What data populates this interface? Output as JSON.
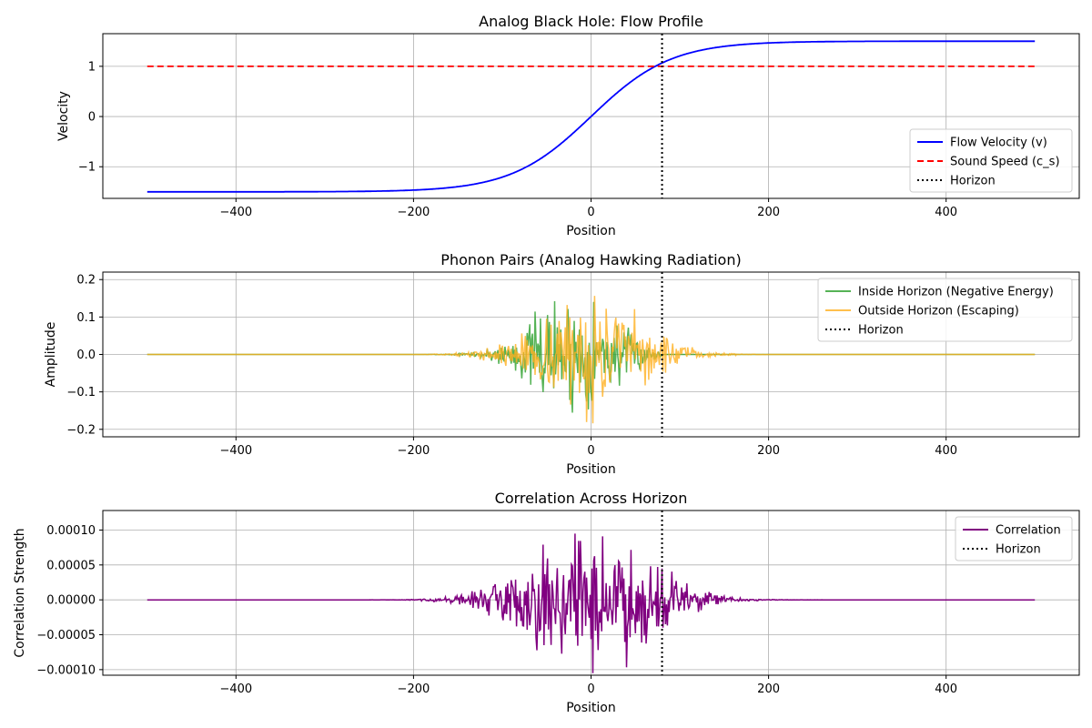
{
  "chart_data": [
    {
      "type": "line",
      "title": "Analog Black Hole: Flow Profile",
      "xlabel": "Position",
      "ylabel": "Velocity",
      "xlim": [
        -550,
        550
      ],
      "ylim": [
        -1.63,
        1.65
      ],
      "xticks": [
        -400,
        -200,
        0,
        200,
        400
      ],
      "xtick_labels": [
        "−400",
        "−200",
        "0",
        "200",
        "400"
      ],
      "yticks": [
        -1,
        0,
        1
      ],
      "ytick_labels": [
        "−1",
        "0",
        "1"
      ],
      "grid": true,
      "legend_position": "lower-right",
      "horizon_x": 80,
      "series": [
        {
          "name": "Flow Velocity (v)",
          "color": "#0000ff",
          "style": "solid",
          "shape": "tanh",
          "amplitude": 1.5,
          "width": 90,
          "x_range": [
            -500,
            500
          ]
        },
        {
          "name": "Sound Speed (c_s)",
          "color": "#ff0000",
          "style": "dashed",
          "constant": 1,
          "x_range": [
            -500,
            500
          ]
        },
        {
          "name": "Horizon",
          "color": "#000000",
          "style": "dotted",
          "vertical_x": 80
        }
      ]
    },
    {
      "type": "line",
      "title": "Phonon Pairs (Analog Hawking Radiation)",
      "xlabel": "Position",
      "ylabel": "Amplitude",
      "xlim": [
        -550,
        550
      ],
      "ylim": [
        -0.22,
        0.22
      ],
      "xticks": [
        -400,
        -200,
        0,
        200,
        400
      ],
      "xtick_labels": [
        "−400",
        "−200",
        "0",
        "200",
        "400"
      ],
      "yticks": [
        -0.2,
        -0.1,
        0.0,
        0.1,
        0.2
      ],
      "ytick_labels": [
        "−0.2",
        "−0.1",
        "0.0",
        "0.1",
        "0.2"
      ],
      "grid": true,
      "legend_position": "upper-right",
      "horizon_x": 80,
      "series": [
        {
          "name": "Inside Horizon (Negative Energy)",
          "color": "#2ca02c",
          "alpha": 0.8,
          "style": "solid",
          "center": -20,
          "sigma": 45,
          "peak": 0.2,
          "range": [
            -220,
            80
          ],
          "seed": 7
        },
        {
          "name": "Outside Horizon (Escaping)",
          "color": "#ffb020",
          "alpha": 0.8,
          "style": "solid",
          "center": 0,
          "sigma": 55,
          "peak": 0.19,
          "range": [
            -200,
            230
          ],
          "seed": 13
        },
        {
          "name": "Horizon",
          "color": "#000000",
          "style": "dotted",
          "vertical_x": 80
        }
      ]
    },
    {
      "type": "line",
      "title": "Correlation Across Horizon",
      "xlabel": "Position",
      "ylabel": "Correlation Strength",
      "xlim": [
        -550,
        550
      ],
      "ylim": [
        -0.000108,
        0.000128
      ],
      "xticks": [
        -400,
        -200,
        0,
        200,
        400
      ],
      "xtick_labels": [
        "−400",
        "−200",
        "0",
        "200",
        "400"
      ],
      "yticks": [
        -0.0001,
        -5e-05,
        0,
        5e-05,
        0.0001
      ],
      "ytick_labels": [
        "−0.00010",
        "−0.00005",
        "0.00000",
        "0.00005",
        "0.00010"
      ],
      "grid": true,
      "legend_position": "upper-right",
      "horizon_x": 80,
      "series": [
        {
          "name": "Correlation",
          "color": "#800080",
          "style": "solid",
          "center": 0,
          "sigma": 65,
          "peak": 0.00012,
          "range": [
            -280,
            300
          ],
          "seed": 29
        },
        {
          "name": "Horizon",
          "color": "#000000",
          "style": "dotted",
          "vertical_x": 80
        }
      ]
    }
  ]
}
